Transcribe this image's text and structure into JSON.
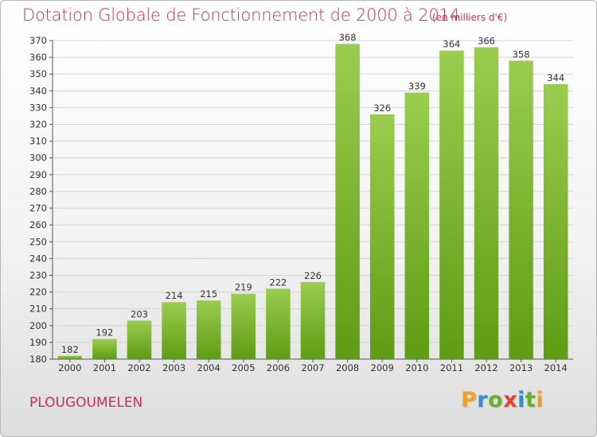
{
  "chart_data": {
    "type": "bar",
    "title": "Dotation Globale de Fonctionnement de 2000 à 2014",
    "subtitle": "(en milliers d'€)",
    "categories": [
      "2000",
      "2001",
      "2002",
      "2003",
      "2004",
      "2005",
      "2006",
      "2007",
      "2008",
      "2009",
      "2010",
      "2011",
      "2012",
      "2013",
      "2014"
    ],
    "values": [
      182,
      192,
      203,
      214,
      215,
      219,
      222,
      226,
      368,
      326,
      339,
      364,
      366,
      358,
      344
    ],
    "ylim": [
      180,
      370
    ],
    "ytick_step": 10,
    "grid": true,
    "bar_color_top": "#9acd4e",
    "bar_color_bottom": "#5e9c14"
  },
  "footer": {
    "commune": "PLOUGOUMELEN",
    "logo_letters": [
      "P",
      "r",
      "o",
      "x",
      "i",
      "t",
      "i"
    ],
    "logo_colors": [
      "#f0a024",
      "#2f8ed0",
      "#6cae2b",
      "#e8412d",
      "#2f8ed0",
      "#6cae2b",
      "#f0a024"
    ]
  }
}
